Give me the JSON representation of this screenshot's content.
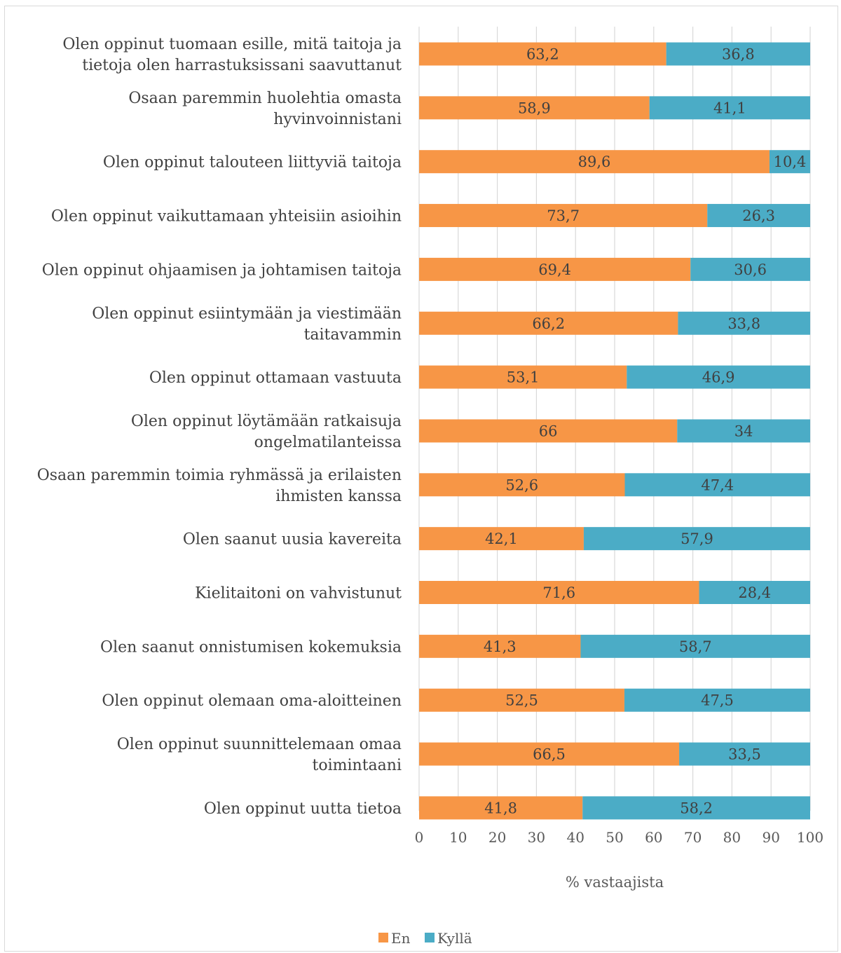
{
  "chart_data": {
    "type": "bar",
    "orientation": "horizontal",
    "stacked": true,
    "categories": [
      [
        "Olen oppinut tuomaan esille, mitä taitoja ja",
        "tietoja olen harrastuksissani saavuttanut"
      ],
      [
        "Osaan paremmin huolehtia omasta",
        "hyvinvoinnistani"
      ],
      [
        "Olen oppinut talouteen liittyviä taitoja"
      ],
      [
        "Olen oppinut vaikuttamaan yhteisiin asioihin"
      ],
      [
        "Olen oppinut ohjaamisen ja johtamisen taitoja"
      ],
      [
        "Olen oppinut esiintymään ja viestimään",
        "taitavammin"
      ],
      [
        "Olen oppinut ottamaan vastuuta"
      ],
      [
        "Olen oppinut löytämään ratkaisuja",
        "ongelmatilanteissa"
      ],
      [
        "Osaan paremmin toimia ryhmässä ja erilaisten",
        "ihmisten kanssa"
      ],
      [
        "Olen saanut uusia kavereita"
      ],
      [
        "Kielitaitoni on vahvistunut"
      ],
      [
        "Olen saanut onnistumisen kokemuksia"
      ],
      [
        "Olen oppinut olemaan oma-aloitteinen"
      ],
      [
        "Olen oppinut suunnittelemaan omaa",
        "toimintaani"
      ],
      [
        "Olen oppinut uutta tietoa"
      ]
    ],
    "series": [
      {
        "name": "En",
        "color": "#F79646",
        "values": [
          63.2,
          58.9,
          89.6,
          73.7,
          69.4,
          66.2,
          53.1,
          66,
          52.6,
          42.1,
          71.6,
          41.3,
          52.5,
          66.5,
          41.8
        ],
        "labels": [
          "63,2",
          "58,9",
          "89,6",
          "73,7",
          "69,4",
          "66,2",
          "53,1",
          "66",
          "52,6",
          "42,1",
          "71,6",
          "41,3",
          "52,5",
          "66,5",
          "41,8"
        ]
      },
      {
        "name": "Kyllä",
        "color": "#4BACC6",
        "values": [
          36.8,
          41.1,
          10.4,
          26.3,
          30.6,
          33.8,
          46.9,
          34,
          47.4,
          57.9,
          28.4,
          58.7,
          47.5,
          33.5,
          58.2
        ],
        "labels": [
          "36,8",
          "41,1",
          "10,4",
          "26,3",
          "30,6",
          "33,8",
          "46,9",
          "34",
          "47,4",
          "57,9",
          "28,4",
          "58,7",
          "47,5",
          "33,5",
          "58,2"
        ]
      }
    ],
    "xlim": [
      0,
      100
    ],
    "xticks": [
      "0",
      "10",
      "20",
      "30",
      "40",
      "50",
      "60",
      "70",
      "80",
      "90",
      "100"
    ],
    "xlabel": "% vastaajista",
    "grid": true,
    "legend_position": "bottom",
    "gridline_color": "#d9d9d9",
    "label_color": "#404040"
  }
}
